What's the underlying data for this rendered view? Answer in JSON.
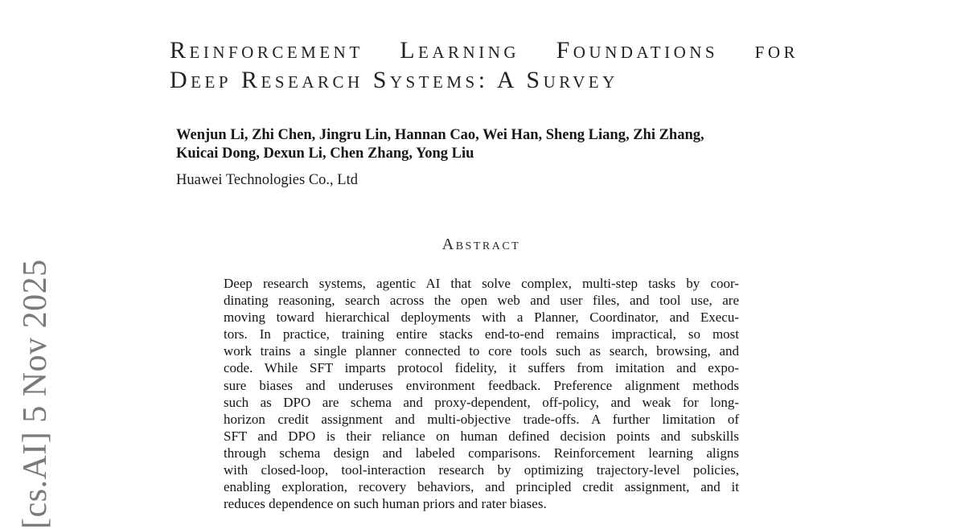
{
  "paper": {
    "title": {
      "line1": "Reinforcement Learning Foundations for",
      "line2": "Deep Research Systems: A Survey"
    },
    "authors": {
      "line1": "Wenjun Li, Zhi Chen, Jingru Lin, Hannan Cao, Wei Han, Sheng Liang, Zhi Zhang,",
      "line2": "Kuicai Dong, Dexun Li, Chen Zhang, Yong Liu"
    },
    "affiliation": "Huawei Technologies Co., Ltd",
    "abstract": {
      "heading": "Abstract",
      "lines": [
        "Deep research systems, agentic AI that solve complex, multi-step tasks by coor-",
        "dinating reasoning, search across the open web and user files, and tool use, are",
        "moving toward hierarchical deployments with a Planner, Coordinator, and Execu-",
        "tors. In practice, training entire stacks end-to-end remains impractical, so most",
        "work trains a single planner connected to core tools such as search, browsing, and",
        "code. While SFT imparts protocol fidelity, it suffers from imitation and expo-",
        "sure biases and underuses environment feedback. Preference alignment methods",
        "such as DPO are schema and proxy-dependent, off-policy, and weak for long-",
        "horizon credit assignment and multi-objective trade-offs. A further limitation of",
        "SFT and DPO is their reliance on human defined decision points and subskills",
        "through schema design and labeled comparisons. Reinforcement learning aligns",
        "with closed-loop, tool-interaction research by optimizing trajectory-level policies,",
        "enabling exploration, recovery behaviors, and principled credit assignment, and it",
        "reduces dependence on such human priors and rater biases."
      ]
    },
    "arxiv_stamp": "[cs.AI] 5 Nov 2025",
    "colors": {
      "background": "#ffffff",
      "text": "#1b1b1b",
      "stamp_gray": "#7a7a7a"
    }
  }
}
